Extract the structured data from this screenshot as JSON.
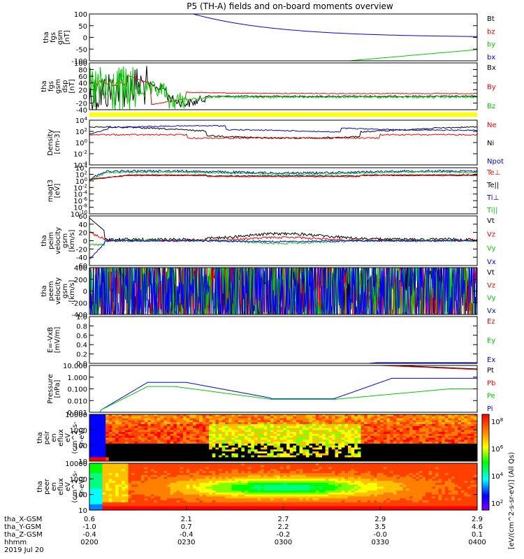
{
  "title": "P5 (TH-A) fields and on-board moments overview",
  "time_axis": {
    "rows": [
      {
        "label": "tha_X-GSM",
        "values": [
          "0.6",
          "2.1",
          "2.7",
          "2.9",
          "2.9"
        ]
      },
      {
        "label": "tha_Y-GSM",
        "values": [
          "-1.0",
          "0.7",
          "2.2",
          "3.5",
          "4.6"
        ]
      },
      {
        "label": "tha_Z-GSM",
        "values": [
          "-0.4",
          "-0.4",
          "-0.2",
          "-0.0",
          "0.1"
        ]
      },
      {
        "label": "hhmm",
        "values": [
          "0200",
          "0230",
          "0300",
          "0330",
          "0400"
        ]
      }
    ],
    "date": "2019 Jul 20"
  },
  "colors": {
    "black": "#000000",
    "red": "#ff0000",
    "green": "#00cc00",
    "blue": "#0000ff",
    "yellow": "#ffff00"
  },
  "chart_data": [
    {
      "type": "line",
      "ylabel": [
        "tha",
        "fgs",
        "gsm",
        "[nT]"
      ],
      "ylim": [
        -100,
        100
      ],
      "yticks": [
        "100",
        "50",
        "0",
        "-50",
        "-100"
      ],
      "legend": [
        "Bt",
        "bz",
        "by",
        "bx"
      ],
      "legend_colors": [
        "black",
        "red",
        "green",
        "blue"
      ]
    },
    {
      "type": "line",
      "ylabel": [
        "tha",
        "fgs",
        "gsm",
        "dsp",
        "[nT]"
      ],
      "ylim": [
        -40,
        100
      ],
      "yticks": [
        "100",
        "80",
        "60",
        "40",
        "20",
        "0",
        "-20",
        "-40"
      ],
      "legend": [
        "Bx",
        "By",
        "Bz"
      ],
      "legend_colors": [
        "black",
        "red",
        "green"
      ]
    },
    {
      "type": "line",
      "ylabel": [
        "Density",
        "[cm-3]"
      ],
      "scale": "log",
      "yticks": [
        "10^4",
        "10^2",
        "10^0",
        "10^-2",
        "10^-4"
      ],
      "legend": [
        "Ne",
        "Ni",
        "Npot"
      ],
      "legend_colors": [
        "red",
        "black",
        "blue"
      ]
    },
    {
      "type": "line",
      "ylabel": [
        "magt3",
        "[eV]"
      ],
      "scale": "log",
      "yticks": [
        "10^4",
        "10^2",
        "10^0",
        "10^-2",
        "10^-4",
        "10^-6",
        "10^-8",
        "10^-10"
      ],
      "legend": [
        "Te⊥",
        "Te||",
        "Ti⊥",
        "Ti||"
      ],
      "legend_colors": [
        "red",
        "black",
        "blue",
        "green"
      ]
    },
    {
      "type": "line",
      "ylabel": [
        "tha",
        "peim",
        "velocity",
        "gsm",
        "[km/s]"
      ],
      "ylim": [
        -60,
        60
      ],
      "yticks": [
        "60",
        "40",
        "20",
        "0",
        "-20",
        "-40",
        "-60"
      ],
      "legend": [
        "Vt",
        "Vz",
        "Vy",
        "Vx"
      ],
      "legend_colors": [
        "black",
        "red",
        "green",
        "blue"
      ]
    },
    {
      "type": "line",
      "ylabel": [
        "tha",
        "peem",
        "velocity",
        "gsm",
        "[km/s]"
      ],
      "ylim": [
        -400,
        400
      ],
      "yticks": [
        "400",
        "200",
        "0",
        "-200",
        "-400"
      ],
      "legend": [
        "Vt",
        "Vz",
        "Vy",
        "Vx"
      ],
      "legend_colors": [
        "black",
        "red",
        "green",
        "blue"
      ]
    },
    {
      "type": "line",
      "ylabel": [
        "E=-VxB",
        "[mV/m]"
      ],
      "ylim": [
        0,
        1
      ],
      "yticks": [
        "1.0",
        "0.8",
        "0.6",
        "0.4",
        "0.2",
        "0.0"
      ],
      "legend": [
        "Ez",
        "Ey",
        "Ex"
      ],
      "legend_colors": [
        "red",
        "green",
        "blue"
      ]
    },
    {
      "type": "line",
      "ylabel": [
        "Pressure",
        "[nPa]"
      ],
      "scale": "log",
      "yticks": [
        "10.000",
        "1.000",
        "0.100",
        "0.010",
        "0.001"
      ],
      "legend": [
        "Pt",
        "Pb",
        "Pe",
        "Pi"
      ],
      "legend_colors": [
        "black",
        "red",
        "green",
        "blue"
      ]
    },
    {
      "type": "heatmap",
      "ylabel": [
        "tha",
        "peir",
        "en",
        "eflux",
        "eV",
        "(cm^2-s-",
        "sr-eV)"
      ],
      "yticks": [
        "10000",
        "1000",
        "100",
        "10"
      ]
    },
    {
      "type": "heatmap",
      "ylabel": [
        "tha",
        "peer",
        "en",
        "eflux",
        "eV",
        "(cm^2-s-",
        "sr-eV)"
      ],
      "yticks": [
        "10000",
        "1000",
        "100",
        "10"
      ]
    }
  ],
  "colorbar": {
    "ticks": [
      "10^8",
      "10^6",
      "10^4",
      "10^2"
    ],
    "label": "[eV/(cm^2-s-sr-eV)] (All Qs)"
  }
}
